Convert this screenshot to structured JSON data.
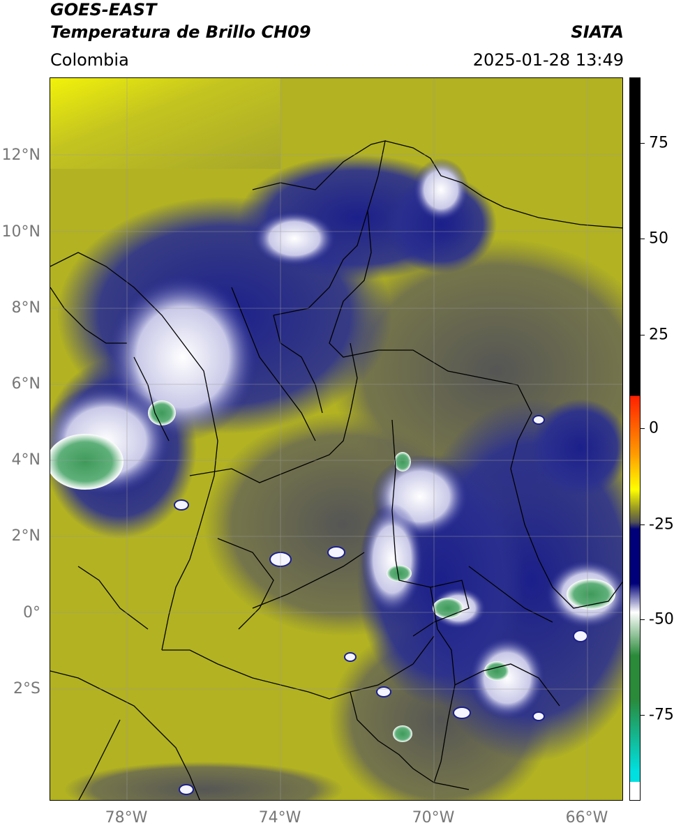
{
  "header": {
    "title_line1": "GOES-EAST",
    "title_line2": "Temperatura de Brillo CH09",
    "organization": "SIATA",
    "region": "Colombia",
    "datetime": "2025-01-28 13:49"
  },
  "map": {
    "lat_labels": [
      "12°N",
      "10°N",
      "8°N",
      "6°N",
      "4°N",
      "2°N",
      "0°",
      "2°S"
    ],
    "lon_labels": [
      "78°W",
      "74°W",
      "70°W",
      "66°W"
    ],
    "colors": {
      "warm_bg": "#bdbd18",
      "mid_olive": "#8a8a3a",
      "gray": "#5c5c5c",
      "cold_blue": "#1b1f8a",
      "white": "#f2f2f7",
      "green": "#3f9a5a"
    }
  },
  "colorbar": {
    "labels": [
      "75",
      "50",
      "25",
      "0",
      "-25",
      "-50",
      "-75"
    ],
    "colors": {
      "black": "#000000",
      "red": "#ff2000",
      "orange": "#ff9a00",
      "yellow": "#ffff00",
      "olive": "#8a8a2a",
      "gray": "#555555",
      "navy": "#00007a",
      "white": "#ffffff",
      "green": "#2a8a3a",
      "cyan": "#00e0e0"
    }
  }
}
